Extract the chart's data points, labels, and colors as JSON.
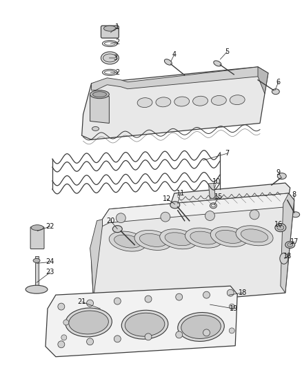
{
  "background_color": "#ffffff",
  "figure_width": 4.38,
  "figure_height": 5.33,
  "dpi": 100,
  "line_color": "#3a3a3a",
  "line_width": 0.9,
  "label_fontsize": 7.0,
  "fill_light": "#e8e8e8",
  "fill_mid": "#d0d0d0",
  "fill_dark": "#b8b8b8"
}
